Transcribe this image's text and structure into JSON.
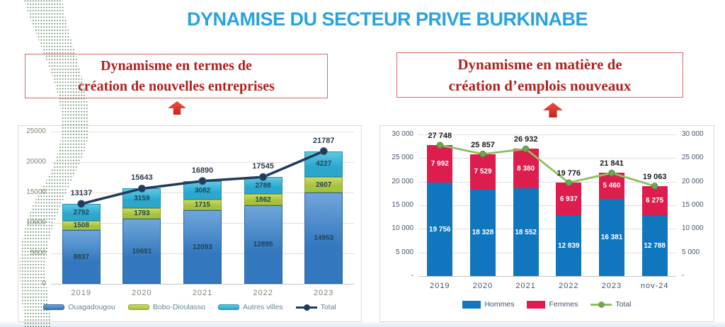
{
  "page": {
    "title": "DYNAMISE DU SECTEUR PRIVE BURKINABE"
  },
  "colors": {
    "title": "#29A4DC",
    "heading_text": "#B1201F",
    "heading_border": "#D96A6A",
    "arrow": "#C8211A",
    "deco_dots": "#5C7F5E",
    "panel_border": "#D9D9D9"
  },
  "sections": {
    "entreprises": {
      "heading_line1": "Dynamisme en termes de",
      "heading_line2": "création de nouvelles entreprises"
    },
    "emplois": {
      "heading_line1": "Dynamisme en matière de",
      "heading_line2": "création d’emplois nouveaux"
    }
  },
  "chart_data": [
    {
      "id": "entreprises",
      "type": "bar",
      "subtype": "stacked-column-with-total-line",
      "title": "",
      "categories": [
        "2019",
        "2020",
        "2021",
        "2022",
        "2023"
      ],
      "series": [
        {
          "name": "Ouagadougou",
          "color": "#3377BE",
          "light_color": "#6FA6DA",
          "border_color": "#2B66A6",
          "values": [
            8837,
            10691,
            12093,
            12895,
            14953
          ],
          "labels": [
            "8837",
            "10691",
            "12093",
            "12895",
            "14953"
          ]
        },
        {
          "name": "Bobo-Dioulasso",
          "color": "#A6C23C",
          "light_color": "#CBDA67",
          "border_color": "#8CA62C",
          "values": [
            1508,
            1793,
            1715,
            1862,
            2607
          ],
          "labels": [
            "1508",
            "1793",
            "1715",
            "1862",
            "2607"
          ]
        },
        {
          "name": "Autres villes",
          "color": "#2BA7CE",
          "light_color": "#5FC8E4",
          "border_color": "#2391B5",
          "values": [
            2792,
            3159,
            3082,
            2788,
            4227
          ],
          "labels": [
            "2792",
            "3159",
            "3082",
            "2788",
            "4227"
          ]
        }
      ],
      "line": {
        "name": "Total",
        "color": "#1F3A5C",
        "marker_color": "#1F3A5C",
        "marker_stroke": "#3A5A80",
        "values": [
          13137,
          15643,
          16890,
          17545,
          21787
        ],
        "labels": [
          "13137",
          "15643",
          "16890",
          "17545",
          "21787"
        ]
      },
      "ylim": [
        0,
        25000
      ],
      "ystep": 5000,
      "yticks_left": [
        "25000",
        "20000",
        "15000",
        "10000",
        "5000",
        "0"
      ],
      "yticks_right": null,
      "grid": true,
      "legend_position": "bottom",
      "axis_color": "#7D8471",
      "value_label_color": "#1F4455",
      "total_label_color": "#2F3E4E",
      "legend_color": "#64868F"
    },
    {
      "id": "emplois",
      "type": "bar",
      "subtype": "stacked-column-with-total-line",
      "title": "",
      "categories": [
        "2019",
        "2020",
        "2021",
        "2022",
        "2023",
        "nov-24"
      ],
      "series": [
        {
          "name": "Hommes",
          "color": "#1077BE",
          "values": [
            19756,
            18328,
            18552,
            12839,
            16381,
            12788
          ],
          "labels": [
            "19 756",
            "18 328",
            "18 552",
            "12 839",
            "16 381",
            "12 788"
          ]
        },
        {
          "name": "Femmes",
          "color": "#DD1D4D",
          "values": [
            7992,
            7529,
            8380,
            6937,
            5460,
            6275
          ],
          "labels": [
            "7 992",
            "7 529",
            "8 380",
            "6 937",
            "5 460",
            "6 275"
          ]
        }
      ],
      "line": {
        "name": "Total",
        "color": "#8CC063",
        "marker_color": "#6FA84F",
        "marker_stroke": "#4F8A3B",
        "values": [
          27748,
          25857,
          26932,
          19776,
          21841,
          19063
        ],
        "labels": [
          "27 748",
          "25 857",
          "26 932",
          "19 776",
          "21 841",
          "19 063"
        ]
      },
      "ylim": [
        0,
        30000
      ],
      "ystep": 5000,
      "yticks_left": [
        "30 000",
        "25 000",
        "20 000",
        "15 000",
        "10 000",
        "5 000",
        "-"
      ],
      "yticks_right": [
        "30 000",
        "25 000",
        "20 000",
        "15 000",
        "10 000",
        "5 000",
        "-"
      ],
      "grid": true,
      "legend_position": "bottom",
      "axis_color": "#44546A",
      "value_label_color": "#FFFFFF",
      "total_label_color": "#1A1A1A",
      "legend_color": "#44546A"
    }
  ]
}
